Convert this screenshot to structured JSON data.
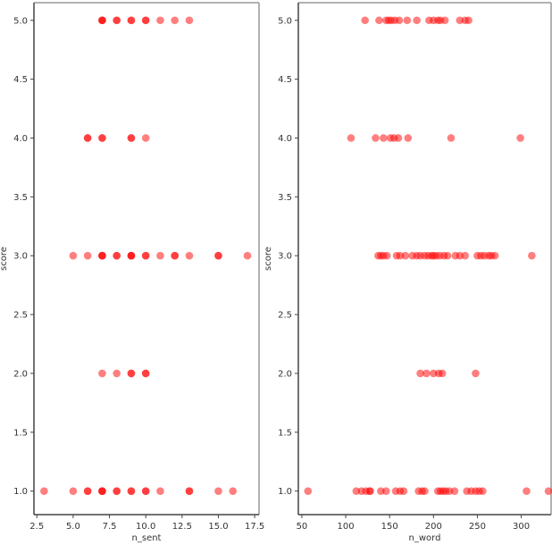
{
  "chart_data": [
    {
      "type": "scatter",
      "xlabel": "n_sent",
      "ylabel": "score",
      "xlim": [
        2.3,
        17.8
      ],
      "ylim": [
        0.8,
        5.15
      ],
      "xticks": [
        2.5,
        5.0,
        7.5,
        10.0,
        12.5,
        15.0,
        17.5
      ],
      "xtick_labels": [
        "2.5",
        "5.0",
        "7.5",
        "10.0",
        "12.5",
        "15.0",
        "17.5"
      ],
      "yticks": [
        1.0,
        1.5,
        2.0,
        2.5,
        3.0,
        3.5,
        4.0,
        4.5,
        5.0
      ],
      "ytick_labels": [
        "1.0",
        "1.5",
        "2.0",
        "2.5",
        "3.0",
        "3.5",
        "4.0",
        "4.5",
        "5.0"
      ],
      "grid": false,
      "series": [
        {
          "color": "#ff0000",
          "points": [
            {
              "x": 3,
              "y": 1
            },
            {
              "x": 5,
              "y": 1
            },
            {
              "x": 6,
              "y": 1
            },
            {
              "x": 6,
              "y": 1
            },
            {
              "x": 7,
              "y": 1
            },
            {
              "x": 7,
              "y": 1
            },
            {
              "x": 7,
              "y": 1
            },
            {
              "x": 8,
              "y": 1
            },
            {
              "x": 8,
              "y": 1
            },
            {
              "x": 9,
              "y": 1
            },
            {
              "x": 9,
              "y": 1
            },
            {
              "x": 10,
              "y": 1
            },
            {
              "x": 10,
              "y": 1
            },
            {
              "x": 11,
              "y": 1
            },
            {
              "x": 13,
              "y": 1
            },
            {
              "x": 13,
              "y": 1
            },
            {
              "x": 15,
              "y": 1
            },
            {
              "x": 16,
              "y": 1
            },
            {
              "x": 7,
              "y": 2
            },
            {
              "x": 8,
              "y": 2
            },
            {
              "x": 9,
              "y": 2
            },
            {
              "x": 9,
              "y": 2
            },
            {
              "x": 10,
              "y": 2
            },
            {
              "x": 10,
              "y": 2
            },
            {
              "x": 5,
              "y": 3
            },
            {
              "x": 6,
              "y": 3
            },
            {
              "x": 7,
              "y": 3
            },
            {
              "x": 7,
              "y": 3
            },
            {
              "x": 7,
              "y": 3
            },
            {
              "x": 8,
              "y": 3
            },
            {
              "x": 8,
              "y": 3
            },
            {
              "x": 9,
              "y": 3
            },
            {
              "x": 9,
              "y": 3
            },
            {
              "x": 9,
              "y": 3
            },
            {
              "x": 10,
              "y": 3
            },
            {
              "x": 10,
              "y": 3
            },
            {
              "x": 11,
              "y": 3
            },
            {
              "x": 12,
              "y": 3
            },
            {
              "x": 12,
              "y": 3
            },
            {
              "x": 13,
              "y": 3
            },
            {
              "x": 15,
              "y": 3
            },
            {
              "x": 15,
              "y": 3
            },
            {
              "x": 17,
              "y": 3
            },
            {
              "x": 6,
              "y": 4
            },
            {
              "x": 6,
              "y": 4
            },
            {
              "x": 7,
              "y": 4
            },
            {
              "x": 7,
              "y": 4
            },
            {
              "x": 9,
              "y": 4
            },
            {
              "x": 9,
              "y": 4
            },
            {
              "x": 10,
              "y": 4
            },
            {
              "x": 7,
              "y": 5
            },
            {
              "x": 7,
              "y": 5
            },
            {
              "x": 7,
              "y": 5
            },
            {
              "x": 8,
              "y": 5
            },
            {
              "x": 8,
              "y": 5
            },
            {
              "x": 9,
              "y": 5
            },
            {
              "x": 9,
              "y": 5
            },
            {
              "x": 10,
              "y": 5
            },
            {
              "x": 10,
              "y": 5
            },
            {
              "x": 11,
              "y": 5
            },
            {
              "x": 12,
              "y": 5
            },
            {
              "x": 13,
              "y": 5
            }
          ]
        }
      ]
    },
    {
      "type": "scatter",
      "xlabel": "n_word",
      "ylabel": "score",
      "xlim": [
        46,
        334
      ],
      "ylim": [
        0.8,
        5.15
      ],
      "xticks": [
        50,
        100,
        150,
        200,
        250,
        300
      ],
      "xtick_labels": [
        "50",
        "100",
        "150",
        "200",
        "250",
        "300"
      ],
      "yticks": [
        1.0,
        1.5,
        2.0,
        2.5,
        3.0,
        3.5,
        4.0,
        4.5,
        5.0
      ],
      "ytick_labels": [
        "1.0",
        "1.5",
        "2.0",
        "2.5",
        "3.0",
        "3.5",
        "4.0",
        "4.5",
        "5.0"
      ],
      "grid": false,
      "series": [
        {
          "color": "#ff0000",
          "points": [
            {
              "x": 57,
              "y": 1
            },
            {
              "x": 112,
              "y": 1
            },
            {
              "x": 118,
              "y": 1
            },
            {
              "x": 123,
              "y": 1
            },
            {
              "x": 127,
              "y": 1
            },
            {
              "x": 128,
              "y": 1
            },
            {
              "x": 140,
              "y": 1
            },
            {
              "x": 146,
              "y": 1
            },
            {
              "x": 157,
              "y": 1
            },
            {
              "x": 162,
              "y": 1
            },
            {
              "x": 166,
              "y": 1
            },
            {
              "x": 183,
              "y": 1
            },
            {
              "x": 187,
              "y": 1
            },
            {
              "x": 190,
              "y": 1
            },
            {
              "x": 205,
              "y": 1
            },
            {
              "x": 208,
              "y": 1
            },
            {
              "x": 211,
              "y": 1
            },
            {
              "x": 214,
              "y": 1
            },
            {
              "x": 218,
              "y": 1
            },
            {
              "x": 224,
              "y": 1
            },
            {
              "x": 238,
              "y": 1
            },
            {
              "x": 243,
              "y": 1
            },
            {
              "x": 248,
              "y": 1
            },
            {
              "x": 252,
              "y": 1
            },
            {
              "x": 256,
              "y": 1
            },
            {
              "x": 306,
              "y": 1
            },
            {
              "x": 331,
              "y": 1
            },
            {
              "x": 185,
              "y": 2
            },
            {
              "x": 192,
              "y": 2
            },
            {
              "x": 200,
              "y": 2
            },
            {
              "x": 206,
              "y": 2
            },
            {
              "x": 210,
              "y": 2
            },
            {
              "x": 248,
              "y": 2
            },
            {
              "x": 137,
              "y": 3
            },
            {
              "x": 140,
              "y": 3
            },
            {
              "x": 143,
              "y": 3
            },
            {
              "x": 147,
              "y": 3
            },
            {
              "x": 158,
              "y": 3
            },
            {
              "x": 162,
              "y": 3
            },
            {
              "x": 168,
              "y": 3
            },
            {
              "x": 176,
              "y": 3
            },
            {
              "x": 181,
              "y": 3
            },
            {
              "x": 185,
              "y": 3
            },
            {
              "x": 190,
              "y": 3
            },
            {
              "x": 194,
              "y": 3
            },
            {
              "x": 198,
              "y": 3
            },
            {
              "x": 200,
              "y": 3
            },
            {
              "x": 203,
              "y": 3
            },
            {
              "x": 207,
              "y": 3
            },
            {
              "x": 212,
              "y": 3
            },
            {
              "x": 216,
              "y": 3
            },
            {
              "x": 225,
              "y": 3
            },
            {
              "x": 230,
              "y": 3
            },
            {
              "x": 236,
              "y": 3
            },
            {
              "x": 250,
              "y": 3
            },
            {
              "x": 254,
              "y": 3
            },
            {
              "x": 258,
              "y": 3
            },
            {
              "x": 263,
              "y": 3
            },
            {
              "x": 266,
              "y": 3
            },
            {
              "x": 270,
              "y": 3
            },
            {
              "x": 312,
              "y": 3
            },
            {
              "x": 106,
              "y": 4
            },
            {
              "x": 134,
              "y": 4
            },
            {
              "x": 143,
              "y": 4
            },
            {
              "x": 151,
              "y": 4
            },
            {
              "x": 155,
              "y": 4
            },
            {
              "x": 160,
              "y": 4
            },
            {
              "x": 171,
              "y": 4
            },
            {
              "x": 220,
              "y": 4
            },
            {
              "x": 299,
              "y": 4
            },
            {
              "x": 122,
              "y": 5
            },
            {
              "x": 138,
              "y": 5
            },
            {
              "x": 146,
              "y": 5
            },
            {
              "x": 149,
              "y": 5
            },
            {
              "x": 152,
              "y": 5
            },
            {
              "x": 156,
              "y": 5
            },
            {
              "x": 161,
              "y": 5
            },
            {
              "x": 170,
              "y": 5
            },
            {
              "x": 181,
              "y": 5
            },
            {
              "x": 195,
              "y": 5
            },
            {
              "x": 200,
              "y": 5
            },
            {
              "x": 205,
              "y": 5
            },
            {
              "x": 208,
              "y": 5
            },
            {
              "x": 213,
              "y": 5
            },
            {
              "x": 230,
              "y": 5
            },
            {
              "x": 236,
              "y": 5
            },
            {
              "x": 240,
              "y": 5
            }
          ]
        }
      ]
    }
  ]
}
